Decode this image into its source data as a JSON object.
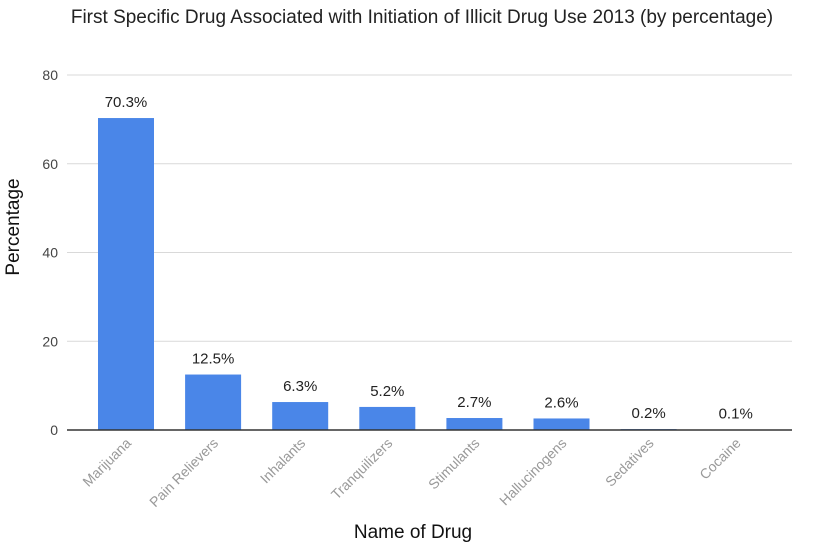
{
  "chart_data": {
    "type": "bar",
    "title": "First Specific Drug Associated with Initiation of Illicit Drug Use 2013 (by percentage)",
    "xlabel": "Name of Drug",
    "ylabel": "Percentage",
    "categories": [
      "Marijuana",
      "Pain Relievers",
      "Inhalants",
      "Tranquilizers",
      "Stimulants",
      "Hallucinogens",
      "Sedatives",
      "Cocaine"
    ],
    "values": [
      70.3,
      12.5,
      6.3,
      5.2,
      2.7,
      2.6,
      0.2,
      0.1
    ],
    "data_labels": [
      "70.3%",
      "12.5%",
      "6.3%",
      "5.2%",
      "2.7%",
      "2.6%",
      "0.2%",
      "0.1%"
    ],
    "ylim": [
      0,
      80
    ],
    "yticks": [
      0,
      20,
      40,
      60,
      80
    ],
    "ytick_labels": [
      "0",
      "20",
      "40",
      "60",
      "80"
    ],
    "grid": true,
    "legend": "none",
    "colors": {
      "bar": "#4a86e8",
      "grid": "#d9d9d9",
      "axis": "#333333"
    }
  }
}
